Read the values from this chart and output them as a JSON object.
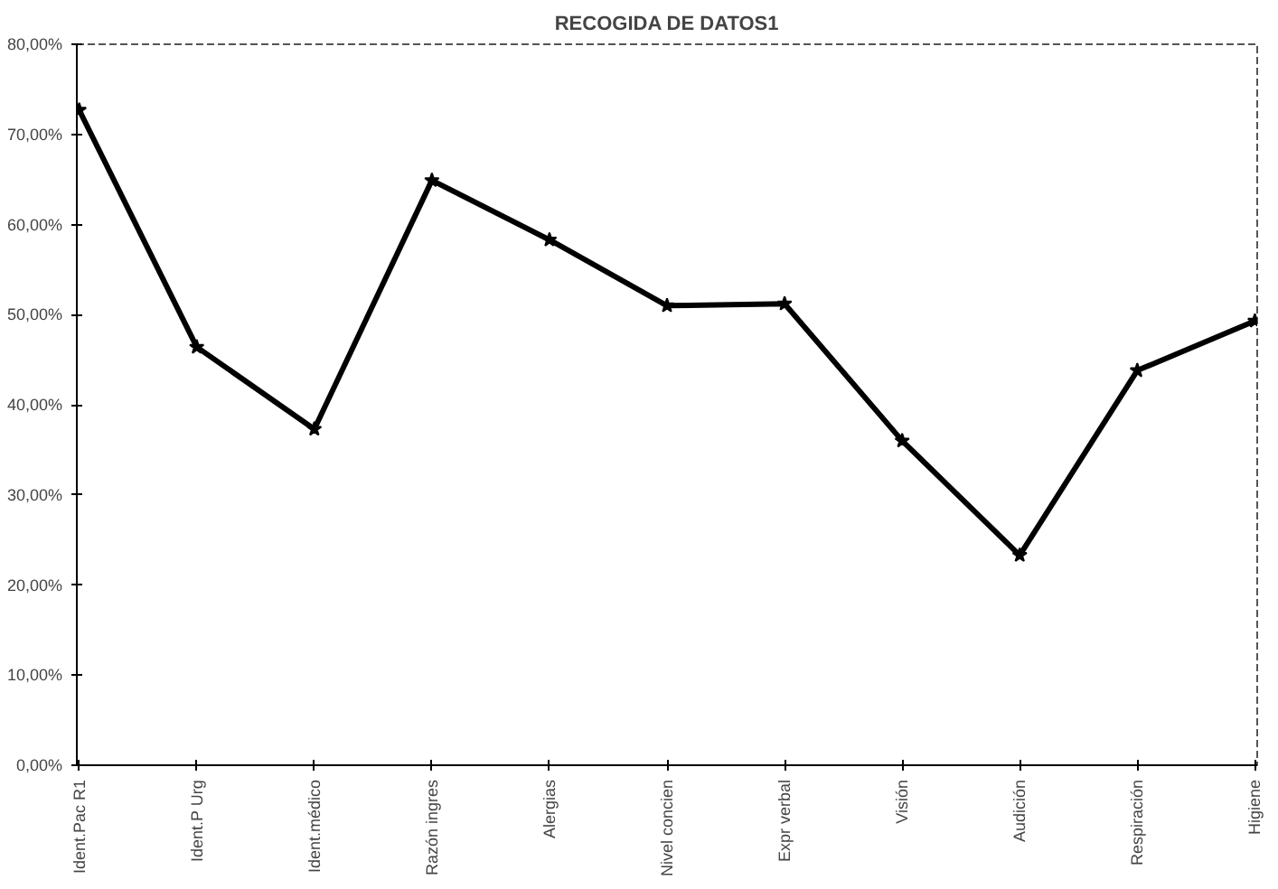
{
  "chart_data": {
    "type": "line",
    "title": "RECOGIDA DE DATOS1",
    "categories": [
      "Ident.Pac R1",
      "Ident.P Urg",
      "Ident.médico",
      "Razón ingres",
      "Alergias",
      "Nivel concien",
      "Expr verbal",
      "Visión",
      "Audición",
      "Respiración",
      "Higiene"
    ],
    "series": [
      {
        "color": "#000000",
        "values": [
          72.7,
          46.4,
          37.3,
          64.9,
          58.3,
          51.0,
          51.2,
          36.0,
          23.3,
          43.8,
          49.3
        ]
      }
    ],
    "ylim": [
      0,
      80
    ],
    "yticks": [
      {
        "value": 0,
        "label": "0,00%"
      },
      {
        "value": 10,
        "label": "10,00%"
      },
      {
        "value": 20,
        "label": "20,00%"
      },
      {
        "value": 30,
        "label": "30,00%"
      },
      {
        "value": 40,
        "label": "40,00%"
      },
      {
        "value": 50,
        "label": "50,00%"
      },
      {
        "value": 60,
        "label": "60,00%"
      },
      {
        "value": 70,
        "label": "70,00%"
      },
      {
        "value": 80,
        "label": "80,00%"
      }
    ],
    "grid": false,
    "marker": "star",
    "line_style": "solid"
  }
}
